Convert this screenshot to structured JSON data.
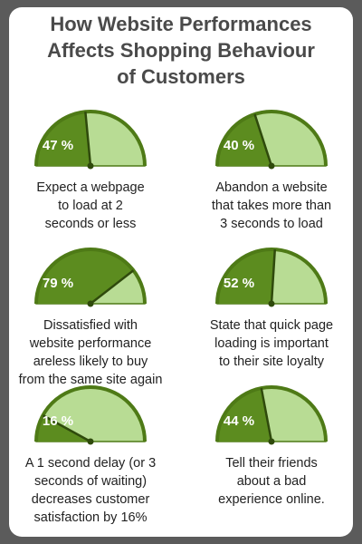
{
  "title": [
    "How Website Performances",
    "Affects Shopping Behaviour",
    "of Customers"
  ],
  "chart_data": [
    {
      "type": "gauge",
      "values": [
        47
      ],
      "value_labels": [
        "47 %"
      ],
      "caption": [
        "Expect a webpage",
        "to load at 2",
        "seconds or less"
      ]
    },
    {
      "type": "gauge",
      "values": [
        40
      ],
      "value_labels": [
        "40 %"
      ],
      "caption": [
        "Abandon a website",
        "that takes more than",
        "3 seconds to load"
      ]
    },
    {
      "type": "gauge",
      "values": [
        79
      ],
      "value_labels": [
        "79 %"
      ],
      "caption": [
        "Dissatisfied with",
        "website performance",
        "areless likely to buy",
        "from the same site again"
      ]
    },
    {
      "type": "gauge",
      "values": [
        52
      ],
      "value_labels": [
        "52 %"
      ],
      "caption": [
        "State that quick page",
        "loading is important",
        "to their site loyalty"
      ]
    },
    {
      "type": "gauge",
      "values": [
        16
      ],
      "value_labels": [
        "16 %"
      ],
      "caption": [
        "A 1 second delay (or 3",
        "seconds of waiting)",
        "decreases customer",
        "satisfaction by 16%"
      ]
    },
    {
      "type": "gauge",
      "values": [
        44
      ],
      "value_labels": [
        "44 %"
      ],
      "caption": [
        "Tell their friends",
        "about a bad",
        "experience online."
      ]
    }
  ]
}
